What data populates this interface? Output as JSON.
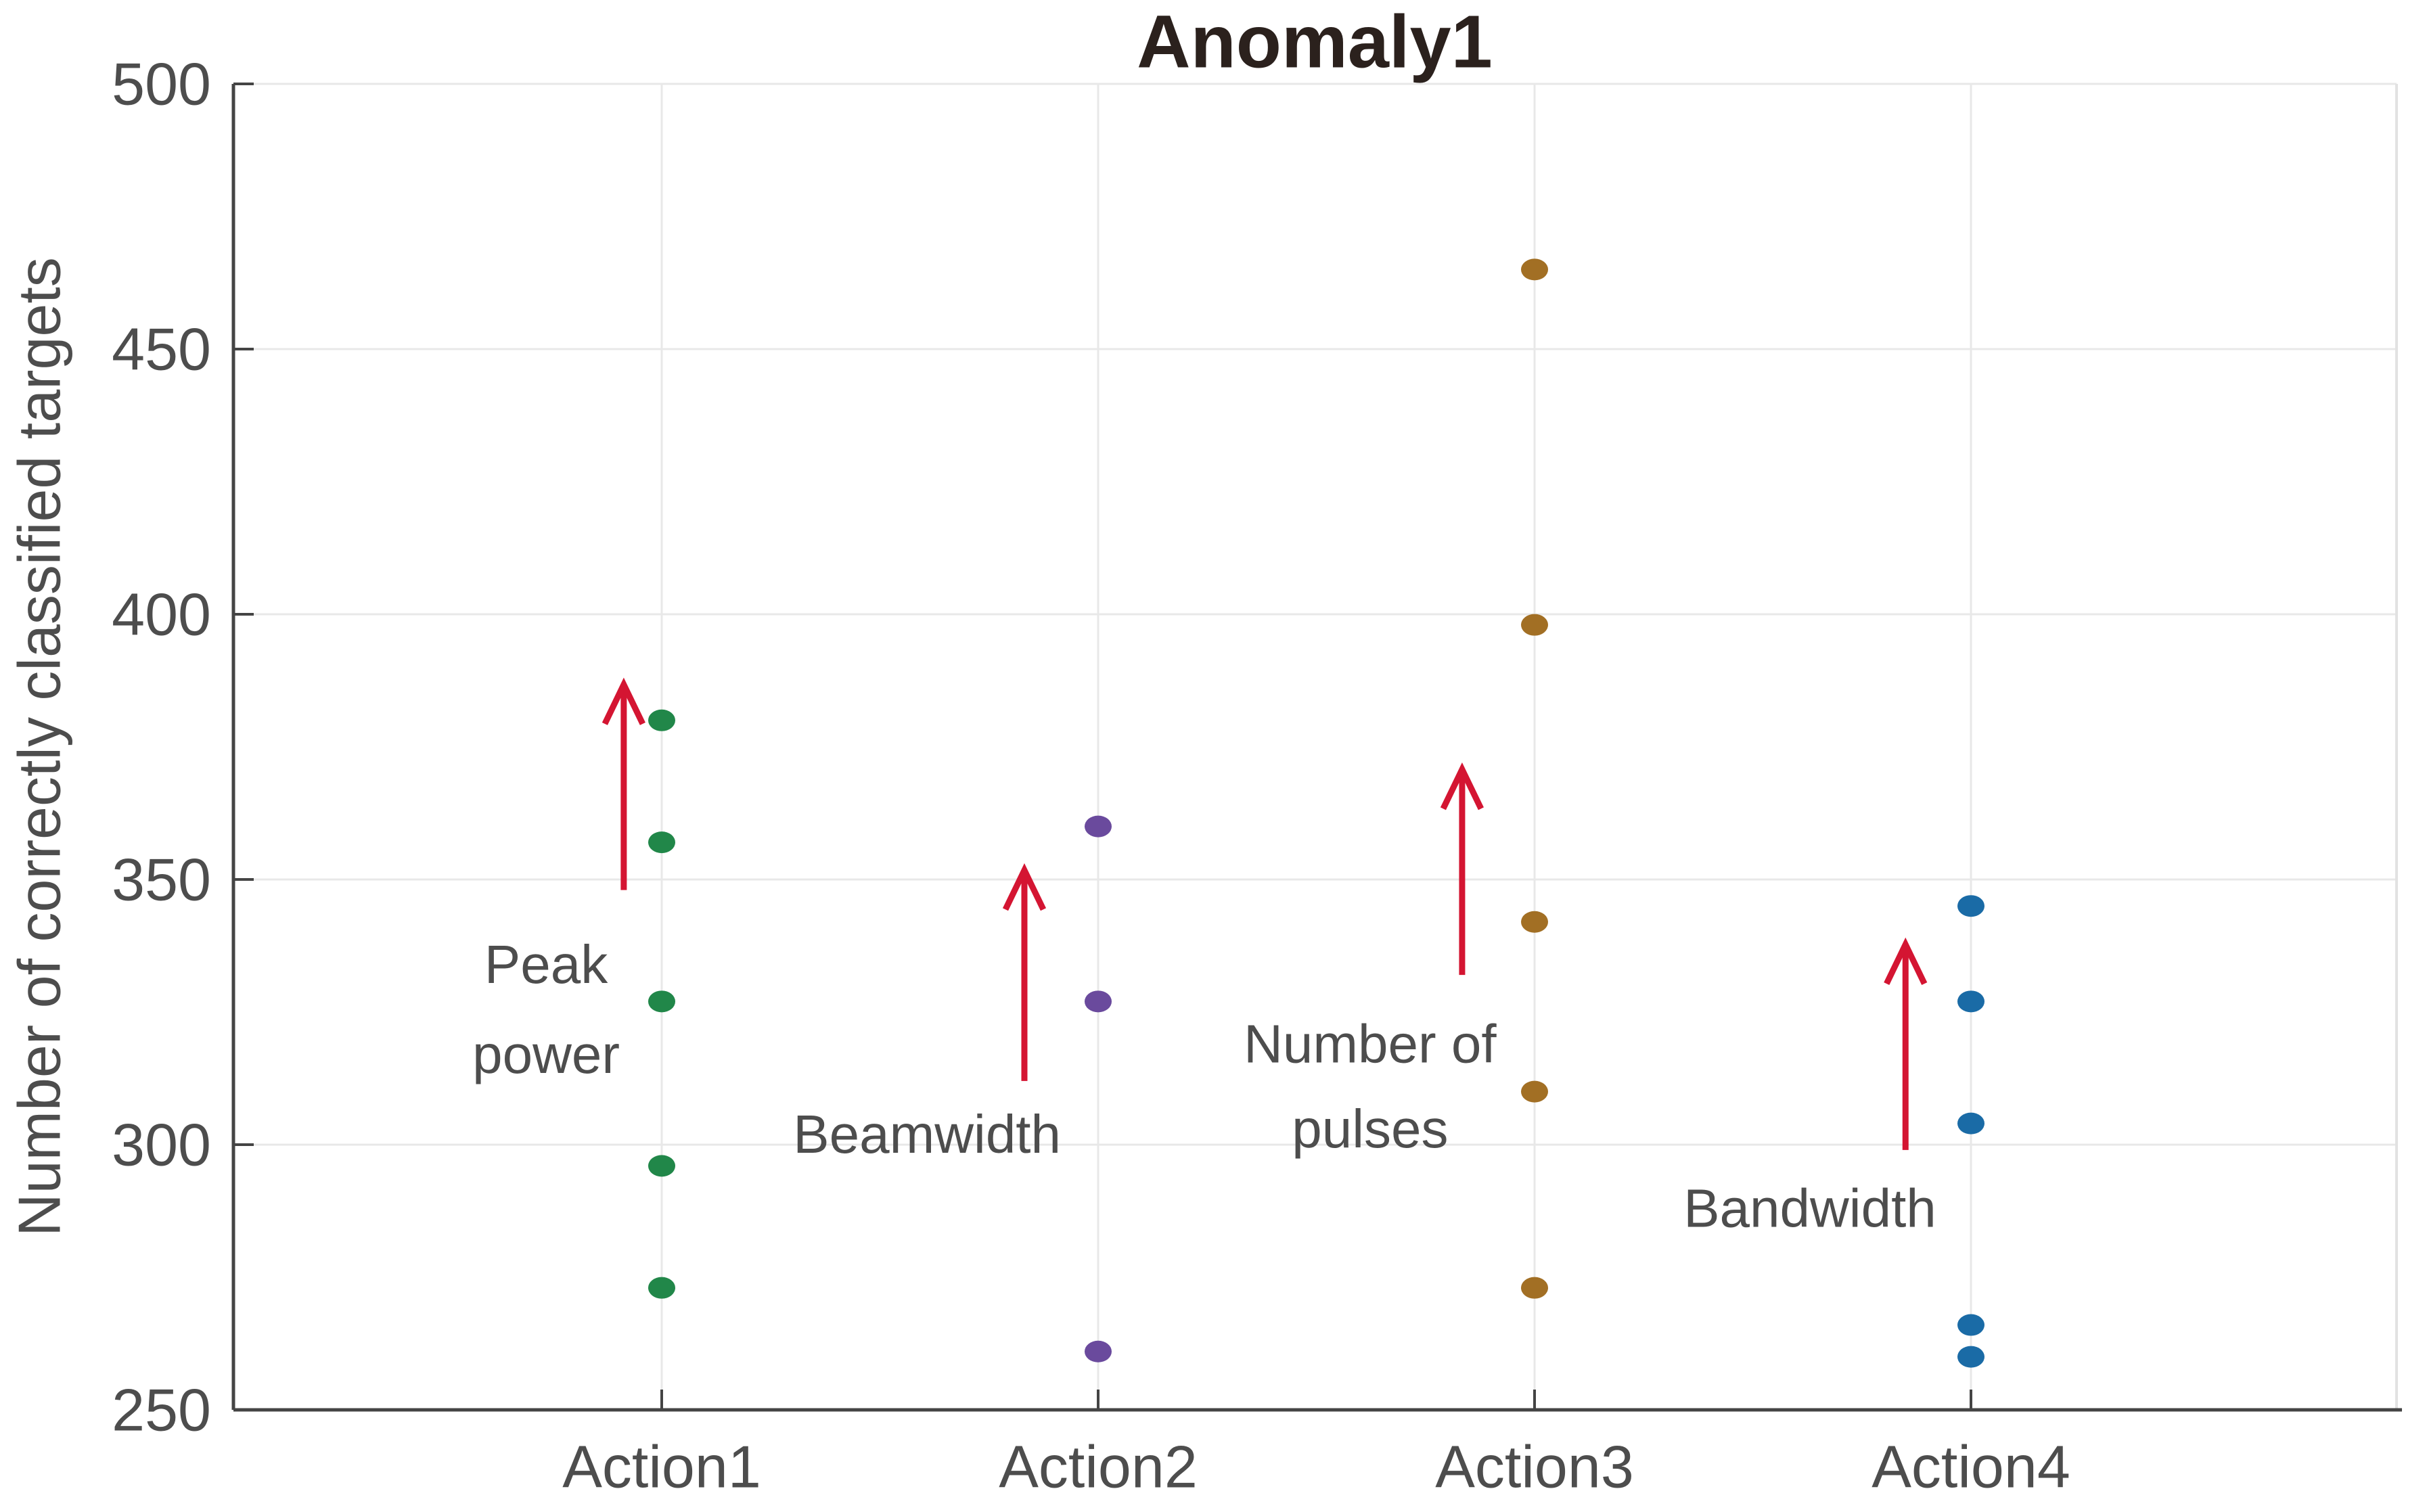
{
  "title": "Anomaly1",
  "chart_data": {
    "type": "scatter",
    "title": "Anomaly1",
    "xlabel": "",
    "ylabel": "Number of correctly classified targets",
    "ylim": [
      250,
      500
    ],
    "yticks": [
      250,
      300,
      350,
      400,
      450,
      500
    ],
    "categories": [
      "Action1",
      "Action2",
      "Action3",
      "Action4"
    ],
    "series": [
      {
        "name": "Action1",
        "color": "#218749",
        "values": [
          380,
          357,
          327,
          296,
          273
        ]
      },
      {
        "name": "Action2",
        "color": "#6a4a9d",
        "values": [
          360,
          327,
          261
        ]
      },
      {
        "name": "Action3",
        "color": "#a26f24",
        "values": [
          465,
          398,
          342,
          310,
          273
        ]
      },
      {
        "name": "Action4",
        "color": "#1a6ba6",
        "values": [
          345,
          327,
          304,
          266,
          260
        ]
      }
    ],
    "grid": true,
    "legend": false,
    "annotations": [
      {
        "lines": [
          {
            "text": "Peak",
            "value": 334
          },
          {
            "text": "power",
            "value": 317
          }
        ],
        "x": 0.735,
        "arrow": {
          "x": 0.913,
          "from": 348,
          "to": 387
        }
      },
      {
        "lines": [
          {
            "text": "Beamwidth",
            "value": 302
          }
        ],
        "x": 1.608,
        "arrow": {
          "x": 1.831,
          "from": 312,
          "to": 352
        }
      },
      {
        "lines": [
          {
            "text": "Number of",
            "value": 319
          },
          {
            "text": "pulses",
            "value": 303
          }
        ],
        "x": 2.623,
        "arrow": {
          "x": 2.834,
          "from": 332,
          "to": 371
        }
      },
      {
        "lines": [
          {
            "text": "Bandwidth",
            "value": 288
          }
        ],
        "x": 3.631,
        "arrow": {
          "x": 3.85,
          "from": 299,
          "to": 338
        }
      }
    ]
  },
  "colors": {
    "text": "#4d4d4d",
    "title": "#2b211d",
    "axis": "#444444",
    "grid": "#e8e8e8",
    "border": "#e2e2e2",
    "arrow": "#d41532",
    "background": "#ffffff"
  }
}
